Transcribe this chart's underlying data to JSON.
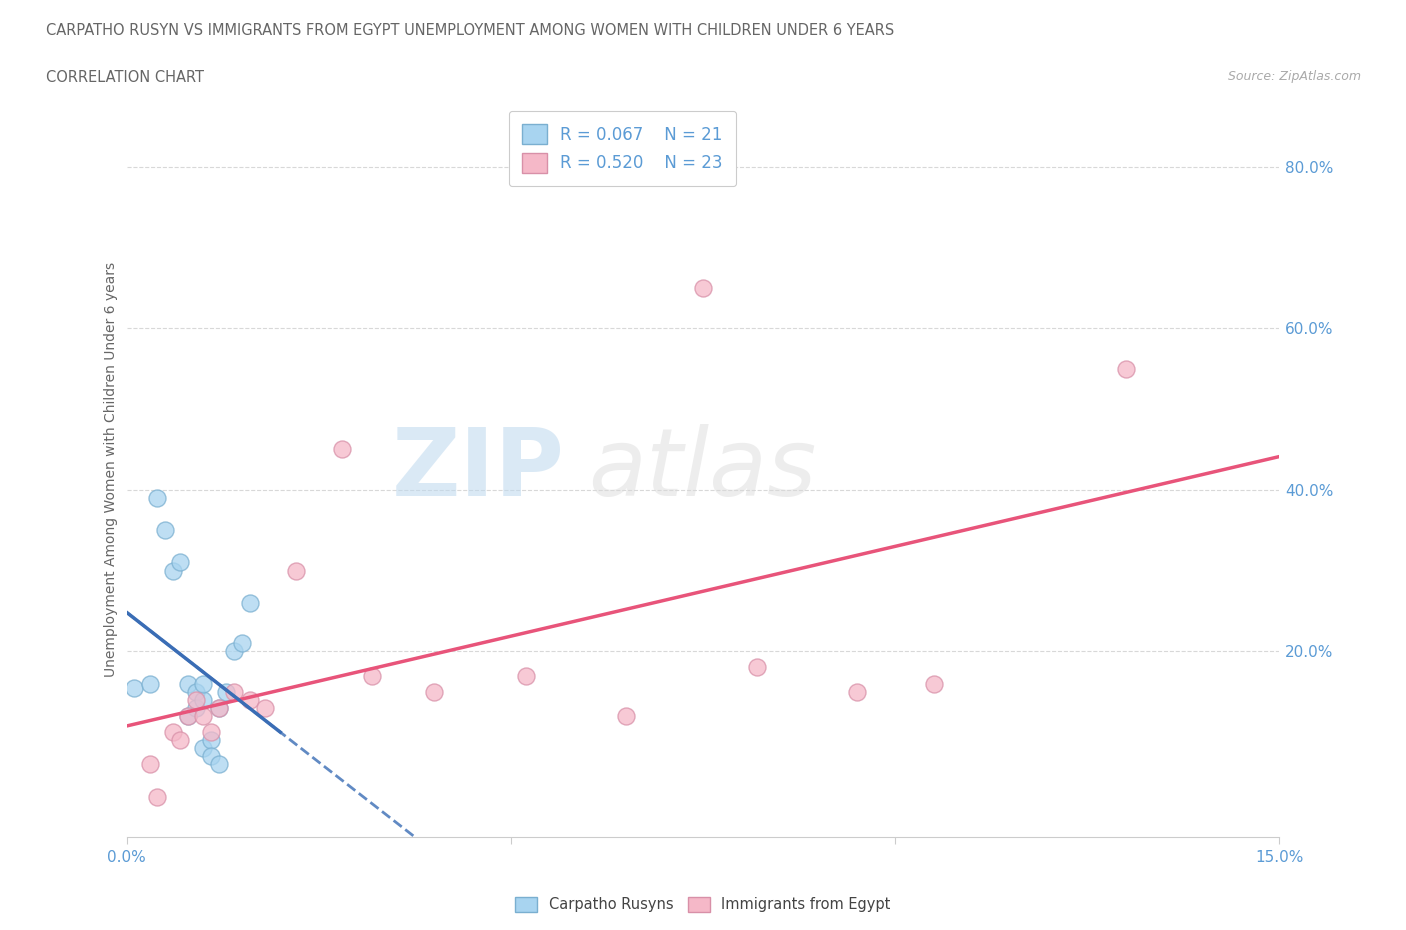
{
  "title": "CARPATHO RUSYN VS IMMIGRANTS FROM EGYPT UNEMPLOYMENT AMONG WOMEN WITH CHILDREN UNDER 6 YEARS",
  "subtitle": "CORRELATION CHART",
  "source": "Source: ZipAtlas.com",
  "ylabel": "Unemployment Among Women with Children Under 6 years",
  "x_min": 0.0,
  "x_max": 0.15,
  "y_min": -0.03,
  "y_max": 0.88,
  "x_ticks": [
    0.0,
    0.05,
    0.1,
    0.15
  ],
  "x_tick_labels": [
    "0.0%",
    "",
    "",
    "15.0%"
  ],
  "y_ticks_right": [
    0.2,
    0.4,
    0.6,
    0.8
  ],
  "y_tick_labels_right": [
    "20.0%",
    "40.0%",
    "60.0%",
    "80.0%"
  ],
  "legend_r1": "R = 0.067",
  "legend_n1": "N = 21",
  "legend_r2": "R = 0.520",
  "legend_n2": "N = 23",
  "color_blue": "#A8D4F0",
  "color_pink": "#F5B8C8",
  "color_blue_line": "#3A6DB5",
  "color_pink_line": "#E8547A",
  "carpatho_x": [
    0.001,
    0.003,
    0.004,
    0.005,
    0.006,
    0.007,
    0.008,
    0.008,
    0.009,
    0.009,
    0.01,
    0.01,
    0.01,
    0.011,
    0.011,
    0.012,
    0.012,
    0.013,
    0.014,
    0.015,
    0.016
  ],
  "carpatho_y": [
    0.155,
    0.16,
    0.39,
    0.35,
    0.3,
    0.31,
    0.16,
    0.12,
    0.15,
    0.13,
    0.14,
    0.16,
    0.08,
    0.09,
    0.07,
    0.13,
    0.06,
    0.15,
    0.2,
    0.21,
    0.26
  ],
  "egypt_x": [
    0.003,
    0.004,
    0.006,
    0.007,
    0.008,
    0.009,
    0.01,
    0.011,
    0.012,
    0.014,
    0.016,
    0.018,
    0.022,
    0.028,
    0.032,
    0.04,
    0.052,
    0.065,
    0.075,
    0.082,
    0.095,
    0.105,
    0.13
  ],
  "egypt_y": [
    0.06,
    0.02,
    0.1,
    0.09,
    0.12,
    0.14,
    0.12,
    0.1,
    0.13,
    0.15,
    0.14,
    0.13,
    0.3,
    0.45,
    0.17,
    0.15,
    0.17,
    0.12,
    0.65,
    0.18,
    0.15,
    0.16,
    0.55
  ],
  "background_color": "#FFFFFF",
  "grid_color": "#D8D8D8",
  "axis_label_color": "#5B9BD5",
  "text_color": "#666666"
}
